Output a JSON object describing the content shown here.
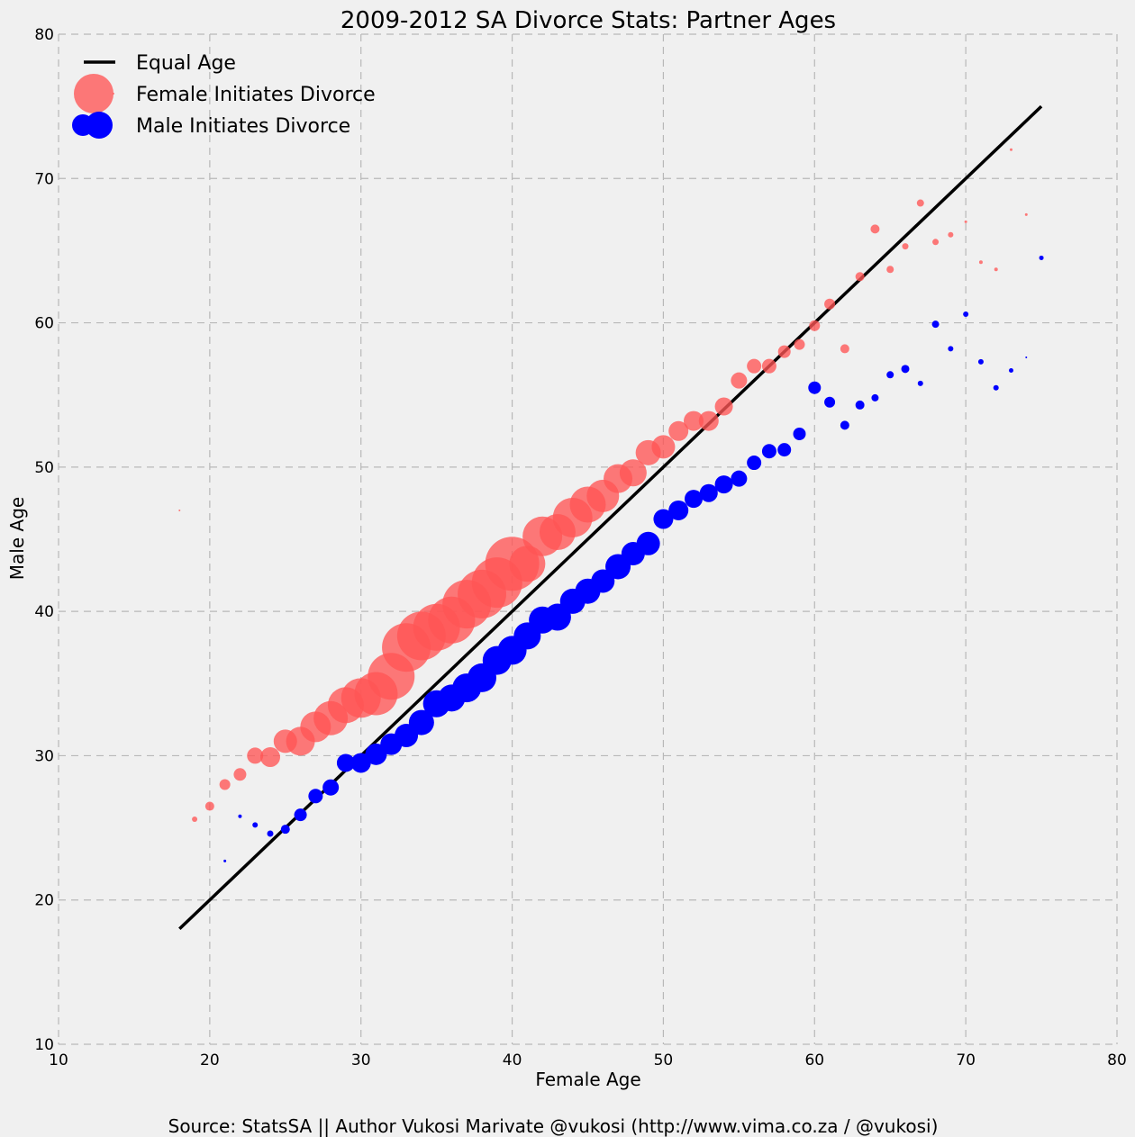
{
  "chart_data": {
    "type": "scatter",
    "title": "2009-2012 SA Divorce Stats: Partner Ages",
    "xlabel": "Female Age",
    "ylabel": "Male Age",
    "xlim": [
      10,
      80
    ],
    "ylim": [
      10,
      80
    ],
    "xticks": [
      10,
      20,
      30,
      40,
      50,
      60,
      70,
      80
    ],
    "yticks": [
      10,
      20,
      30,
      40,
      50,
      60,
      70,
      80
    ],
    "grid": true,
    "legend_position": "top-left",
    "colors": {
      "female": "#ff5555",
      "male": "#0000ff",
      "line": "#000000"
    },
    "equal_line": {
      "name": "Equal Age",
      "x": [
        18,
        75
      ],
      "y": [
        18,
        75
      ]
    },
    "series": [
      {
        "name": "Female Initiates Divorce",
        "color": "#ff5555",
        "points": [
          [
            18,
            47.0,
            1
          ],
          [
            19,
            25.6,
            3
          ],
          [
            20,
            26.5,
            5
          ],
          [
            21,
            28.0,
            6
          ],
          [
            22,
            28.7,
            7
          ],
          [
            23,
            30.0,
            9
          ],
          [
            24,
            29.9,
            11
          ],
          [
            25,
            31.0,
            13
          ],
          [
            26,
            31.0,
            16
          ],
          [
            27,
            32.0,
            17
          ],
          [
            28,
            32.6,
            19
          ],
          [
            29,
            33.5,
            20
          ],
          [
            30,
            34.0,
            22
          ],
          [
            31,
            34.3,
            24
          ],
          [
            32,
            35.5,
            26
          ],
          [
            33,
            37.5,
            27
          ],
          [
            34,
            38.3,
            27
          ],
          [
            35,
            38.9,
            26
          ],
          [
            36,
            39.4,
            26
          ],
          [
            37,
            40.5,
            27
          ],
          [
            38,
            41.2,
            27
          ],
          [
            39,
            42.0,
            28
          ],
          [
            40,
            43.3,
            30
          ],
          [
            41,
            43.3,
            20
          ],
          [
            42,
            45.2,
            22
          ],
          [
            43,
            45.5,
            20
          ],
          [
            44,
            46.5,
            22
          ],
          [
            45,
            47.4,
            20
          ],
          [
            46,
            48.0,
            18
          ],
          [
            47,
            49.2,
            16
          ],
          [
            48,
            49.6,
            15
          ],
          [
            49,
            51.0,
            14
          ],
          [
            50,
            51.4,
            13
          ],
          [
            51,
            52.5,
            11
          ],
          [
            52,
            53.2,
            11
          ],
          [
            53,
            53.2,
            11
          ],
          [
            54,
            54.2,
            10
          ],
          [
            55,
            56.0,
            9
          ],
          [
            56,
            57.0,
            8
          ],
          [
            57,
            57.0,
            8
          ],
          [
            58,
            58.0,
            7
          ],
          [
            59,
            58.5,
            6
          ],
          [
            60,
            59.8,
            6
          ],
          [
            61,
            61.3,
            6
          ],
          [
            62,
            58.2,
            5
          ],
          [
            63,
            63.2,
            5
          ],
          [
            64,
            66.5,
            5
          ],
          [
            65,
            63.7,
            4
          ],
          [
            66,
            65.3,
            3.5
          ],
          [
            67,
            68.3,
            4
          ],
          [
            68,
            65.6,
            3.5
          ],
          [
            69,
            66.1,
            3
          ],
          [
            70,
            67.0,
            1.5
          ],
          [
            71,
            64.2,
            2
          ],
          [
            72,
            63.7,
            2
          ],
          [
            73,
            72.0,
            1.5
          ],
          [
            74,
            67.5,
            1.5
          ]
        ]
      },
      {
        "name": "Male Initiates Divorce",
        "color": "#0000ff",
        "points": [
          [
            21,
            22.7,
            1.5
          ],
          [
            22,
            25.8,
            2
          ],
          [
            23,
            25.2,
            3
          ],
          [
            24,
            24.6,
            3.5
          ],
          [
            25,
            24.9,
            5
          ],
          [
            26,
            25.9,
            7
          ],
          [
            27,
            27.2,
            8
          ],
          [
            28,
            27.8,
            9
          ],
          [
            29,
            29.5,
            10
          ],
          [
            30,
            29.5,
            11
          ],
          [
            31,
            30.1,
            12
          ],
          [
            32,
            30.8,
            12
          ],
          [
            33,
            31.4,
            13
          ],
          [
            34,
            32.3,
            14
          ],
          [
            35,
            33.6,
            15
          ],
          [
            36,
            34.0,
            15
          ],
          [
            37,
            34.7,
            16
          ],
          [
            38,
            35.4,
            16
          ],
          [
            39,
            36.6,
            16
          ],
          [
            40,
            37.3,
            16
          ],
          [
            41,
            38.3,
            15
          ],
          [
            42,
            39.4,
            15
          ],
          [
            43,
            39.6,
            15
          ],
          [
            44,
            40.7,
            14
          ],
          [
            45,
            41.4,
            14
          ],
          [
            46,
            42.1,
            13
          ],
          [
            47,
            43.1,
            14
          ],
          [
            48,
            44.0,
            13
          ],
          [
            49,
            44.7,
            13
          ],
          [
            50,
            46.4,
            11
          ],
          [
            51,
            47.0,
            11
          ],
          [
            52,
            47.8,
            10
          ],
          [
            53,
            48.2,
            10
          ],
          [
            54,
            48.8,
            10
          ],
          [
            55,
            49.2,
            9
          ],
          [
            56,
            50.3,
            8
          ],
          [
            57,
            51.1,
            8
          ],
          [
            58,
            51.2,
            7.5
          ],
          [
            59,
            52.3,
            7
          ],
          [
            60,
            55.5,
            7
          ],
          [
            61,
            54.5,
            6
          ],
          [
            62,
            52.9,
            5
          ],
          [
            63,
            54.3,
            5
          ],
          [
            64,
            54.8,
            4
          ],
          [
            65,
            56.4,
            4
          ],
          [
            66,
            56.8,
            4.5
          ],
          [
            67,
            55.8,
            3
          ],
          [
            68,
            59.9,
            4
          ],
          [
            69,
            58.2,
            3
          ],
          [
            70,
            60.6,
            3
          ],
          [
            71,
            57.3,
            3
          ],
          [
            72,
            55.5,
            3
          ],
          [
            73,
            56.7,
            2.5
          ],
          [
            74,
            57.6,
            1
          ],
          [
            75,
            64.5,
            2.5
          ]
        ]
      }
    ],
    "legend": [
      "Equal Age",
      "Female Initiates Divorce",
      "Male Initiates Divorce"
    ],
    "source": "Source: StatsSA || Author Vukosi Marivate @vukosi (http://www.vima.co.za / @vukosi)"
  }
}
